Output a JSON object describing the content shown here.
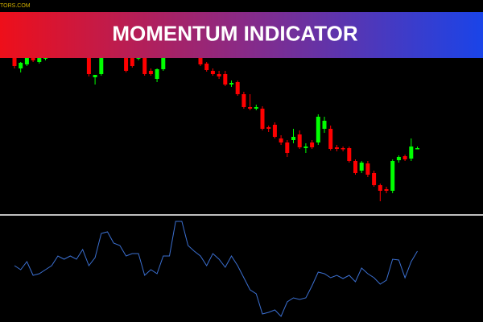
{
  "watermark": "TORS.COM",
  "banner": {
    "title": "MOMENTUM INDICATOR"
  },
  "chart_data": [
    {
      "type": "candlestick",
      "up_color": "#00ff00",
      "down_color": "#ff0000",
      "ylim": [
        135,
        400
      ],
      "open": [
        330,
        315,
        320,
        330,
        323,
        327,
        332,
        330,
        336,
        333,
        340,
        337,
        330,
        304,
        308,
        338,
        336,
        343,
        330,
        328,
        327,
        328,
        312,
        302,
        314,
        338,
        335,
        342,
        338,
        330,
        330,
        321,
        312,
        308,
        308,
        295,
        298,
        283,
        267,
        265,
        265,
        242,
        245,
        228,
        223,
        226,
        233,
        216,
        223,
        223,
        240,
        240,
        217,
        216,
        216,
        200,
        188,
        197,
        185,
        170,
        165,
        163,
        201,
        206,
        203,
        216
      ],
      "high": [
        333,
        323,
        330,
        332,
        332,
        335,
        338,
        338,
        340,
        342,
        345,
        343,
        335,
        307,
        330,
        345,
        345,
        348,
        335,
        332,
        331,
        332,
        315,
        315,
        330,
        345,
        345,
        348,
        342,
        340,
        334,
        323,
        315,
        312,
        312,
        300,
        300,
        286,
        283,
        270,
        268,
        244,
        248,
        232,
        226,
        240,
        238,
        222,
        226,
        258,
        255,
        244,
        220,
        218,
        218,
        202,
        200,
        200,
        188,
        172,
        168,
        202,
        207,
        208,
        228,
        218
      ],
      "low": [
        315,
        310,
        318,
        323,
        321,
        325,
        328,
        328,
        330,
        331,
        335,
        333,
        305,
        295,
        306,
        333,
        334,
        336,
        310,
        316,
        325,
        306,
        306,
        298,
        312,
        332,
        333,
        335,
        328,
        328,
        318,
        311,
        306,
        302,
        293,
        292,
        281,
        265,
        263,
        263,
        238,
        236,
        228,
        220,
        205,
        222,
        215,
        210,
        215,
        220,
        235,
        213,
        212,
        212,
        198,
        183,
        185,
        180,
        168,
        150,
        160,
        160,
        198,
        200,
        200,
        215
      ],
      "close": [
        318,
        322,
        328,
        325,
        330,
        330,
        330,
        335,
        333,
        340,
        337,
        340,
        308,
        307,
        328,
        336,
        343,
        338,
        312,
        318,
        330,
        308,
        308,
        314,
        328,
        335,
        342,
        338,
        330,
        336,
        320,
        313,
        308,
        305,
        295,
        297,
        283,
        267,
        265,
        267,
        240,
        240,
        230,
        223,
        210,
        230,
        217,
        218,
        217,
        255,
        250,
        215,
        215,
        215,
        200,
        185,
        198,
        183,
        170,
        163,
        163,
        200,
        205,
        202,
        218,
        216
      ]
    },
    {
      "type": "line",
      "color": "#3b6fd0",
      "ylim": [
        0,
        132
      ],
      "values": [
        70,
        65,
        75,
        58,
        60,
        65,
        70,
        82,
        78,
        82,
        78,
        90,
        70,
        80,
        110,
        112,
        98,
        95,
        82,
        85,
        85,
        58,
        65,
        60,
        82,
        82,
        125,
        125,
        95,
        88,
        82,
        70,
        85,
        78,
        68,
        82,
        70,
        55,
        40,
        35,
        10,
        12,
        15,
        7,
        25,
        30,
        28,
        30,
        45,
        62,
        60,
        55,
        58,
        54,
        58,
        50,
        67,
        60,
        55,
        47,
        52,
        78,
        77,
        55,
        75,
        88
      ]
    }
  ]
}
